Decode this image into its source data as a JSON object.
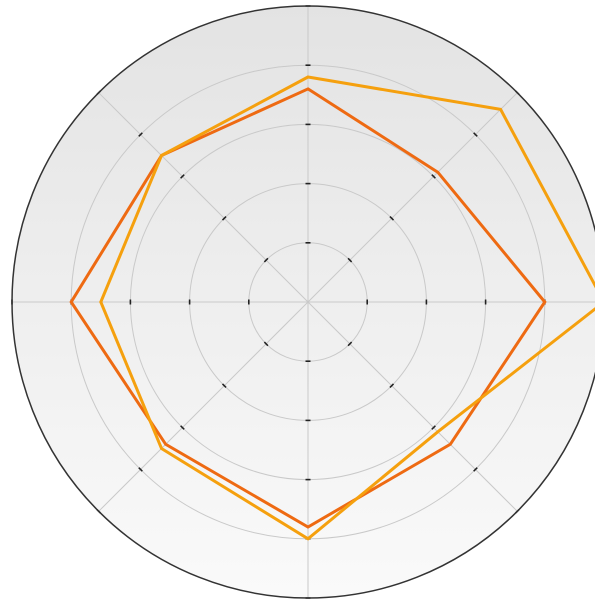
{
  "chart_data": {
    "type": "radar",
    "title": "",
    "axes_count": 8,
    "axis_angles_deg": [
      90,
      45,
      0,
      -45,
      -90,
      -135,
      180,
      135
    ],
    "rlim": [
      0,
      5
    ],
    "rings": [
      1,
      2,
      3,
      4,
      5
    ],
    "grid": true,
    "legend": "none",
    "series": [
      {
        "values": [
          3.6,
          3.1,
          4.0,
          3.4,
          3.8,
          3.4,
          4.0,
          3.5
        ],
        "color": "#ee6a12"
      },
      {
        "values": [
          3.8,
          4.6,
          5.0,
          3.1,
          4.0,
          3.5,
          3.5,
          3.5
        ],
        "color": "#f5a00e"
      }
    ],
    "colors": {
      "background_top": "#e3e3e3",
      "background_bottom": "#fafafa",
      "grid": "#c9c9c9",
      "outer_border": "#333333",
      "tick": "#222222"
    }
  }
}
